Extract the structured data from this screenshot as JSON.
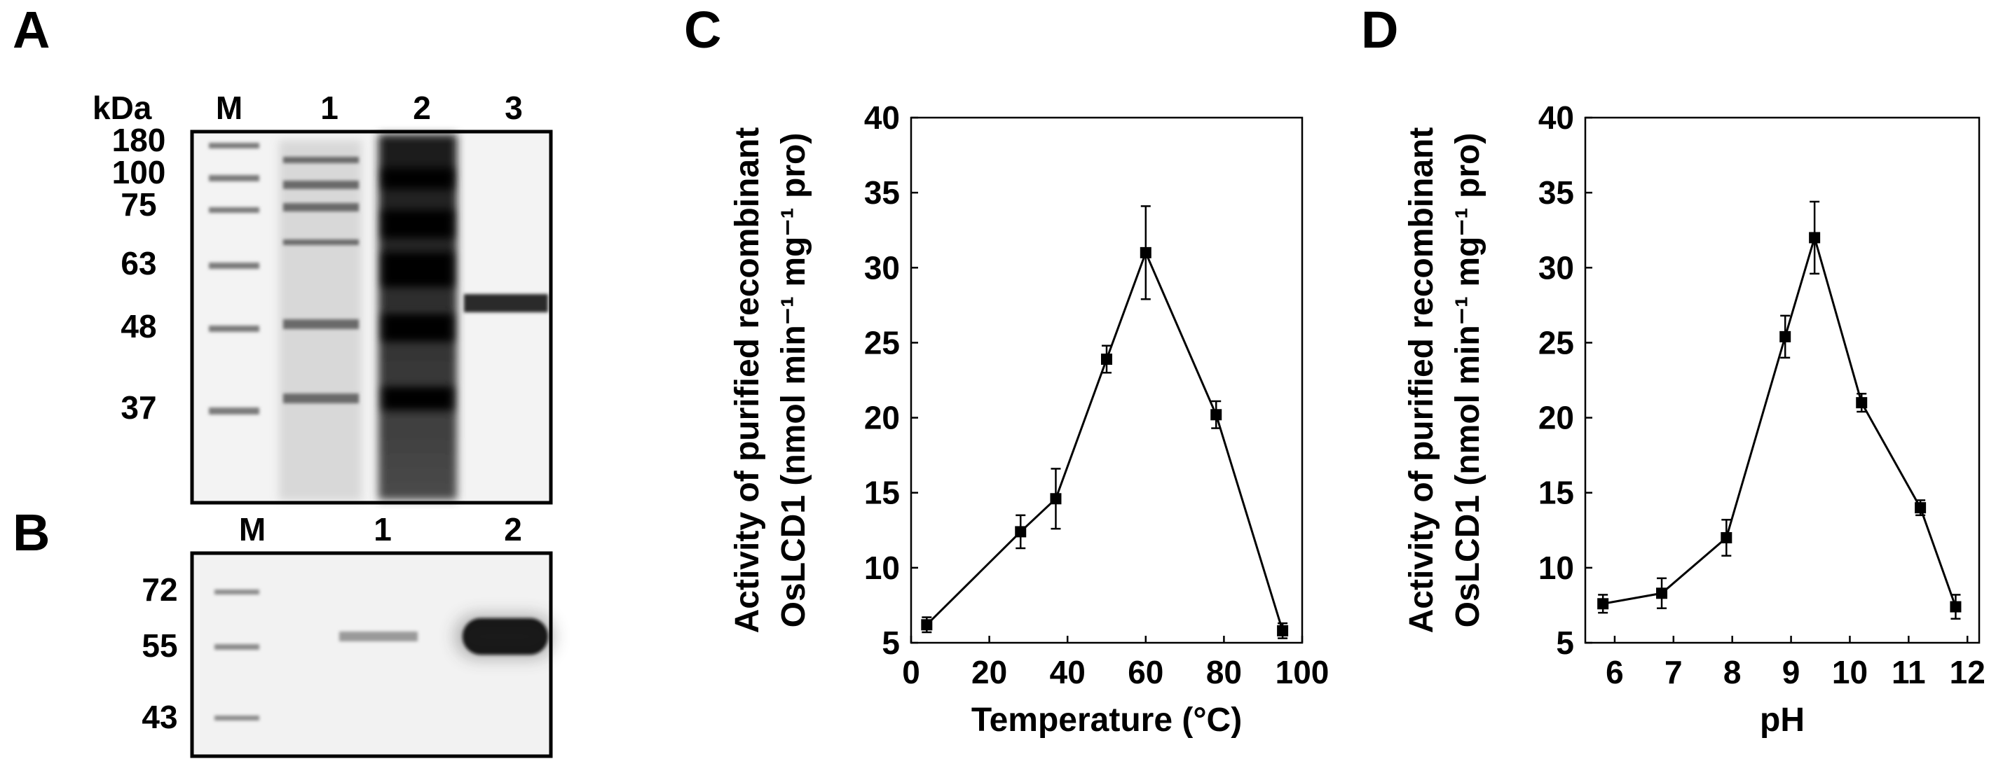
{
  "panels": {
    "a": {
      "letter": "A",
      "unit_label": "kDa",
      "lanes": [
        "M",
        "1",
        "2",
        "3"
      ],
      "markers": [
        "180",
        "100",
        "75",
        "63",
        "48",
        "37"
      ]
    },
    "b": {
      "letter": "B",
      "lanes": [
        "M",
        "1",
        "2"
      ],
      "markers": [
        "72",
        "55",
        "43"
      ]
    }
  },
  "chart_data": [
    {
      "panel": "C",
      "type": "line",
      "title": "",
      "xlabel": "Temperature (°C)",
      "ylabel_line1": "Activity of purified recombinant",
      "ylabel_line2": "OsLCD1 (nmol min⁻¹ mg⁻¹ pro)",
      "xlim": [
        0,
        100
      ],
      "ylim": [
        5,
        40
      ],
      "xticks": [
        0,
        20,
        40,
        60,
        80,
        100
      ],
      "yticks": [
        5,
        10,
        15,
        20,
        25,
        30,
        35,
        40
      ],
      "grid": false,
      "series": [
        {
          "x": [
            4,
            28,
            37,
            50,
            60,
            78,
            95
          ],
          "y": [
            6.2,
            12.4,
            14.6,
            23.9,
            31.0,
            20.2,
            5.8
          ],
          "err": [
            0.5,
            1.1,
            2.0,
            0.9,
            3.1,
            0.9,
            0.5
          ]
        }
      ]
    },
    {
      "panel": "D",
      "type": "line",
      "title": "",
      "xlabel": "pH",
      "ylabel_line1": "Activity of purified recombinant",
      "ylabel_line2": "OsLCD1 (nmol min⁻¹ mg⁻¹ pro)",
      "xlim": [
        5.5,
        12.2
      ],
      "ylim": [
        5,
        40
      ],
      "xticks": [
        6,
        7,
        8,
        9,
        10,
        11,
        12
      ],
      "yticks": [
        5,
        10,
        15,
        20,
        25,
        30,
        35,
        40
      ],
      "grid": false,
      "series": [
        {
          "x": [
            5.8,
            6.8,
            7.9,
            8.9,
            9.4,
            10.2,
            11.2,
            11.8
          ],
          "y": [
            7.6,
            8.3,
            12.0,
            25.4,
            32.0,
            21.0,
            14.0,
            7.4
          ],
          "err": [
            0.6,
            1.0,
            1.2,
            1.4,
            2.4,
            0.6,
            0.5,
            0.8
          ]
        }
      ]
    }
  ]
}
